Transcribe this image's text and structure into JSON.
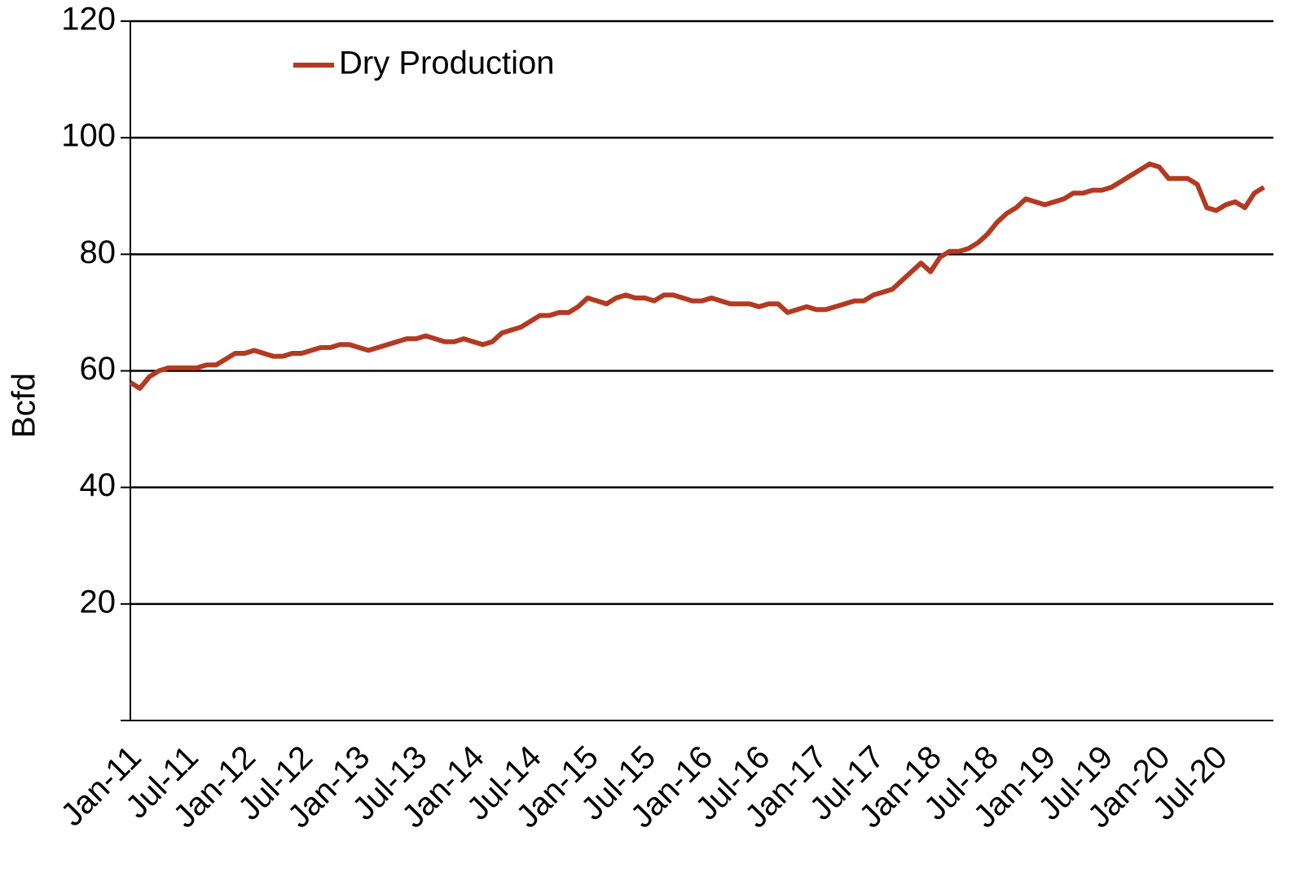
{
  "chart_data": {
    "type": "line",
    "y_label": "Bcfd",
    "categories": [
      "Jan-11",
      null,
      null,
      null,
      null,
      null,
      "Jul-11",
      null,
      null,
      null,
      null,
      null,
      "Jan-12",
      null,
      null,
      null,
      null,
      null,
      "Jul-12",
      null,
      null,
      null,
      null,
      null,
      "Jan-13",
      null,
      null,
      null,
      null,
      null,
      "Jul-13",
      null,
      null,
      null,
      null,
      null,
      "Jan-14",
      null,
      null,
      null,
      null,
      null,
      "Jul-14",
      null,
      null,
      null,
      null,
      null,
      "Jan-15",
      null,
      null,
      null,
      null,
      null,
      "Jul-15",
      null,
      null,
      null,
      null,
      null,
      "Jan-16",
      null,
      null,
      null,
      null,
      null,
      "Jul-16",
      null,
      null,
      null,
      null,
      null,
      "Jan-17",
      null,
      null,
      null,
      null,
      null,
      "Jul-17",
      null,
      null,
      null,
      null,
      null,
      "Jan-18",
      null,
      null,
      null,
      null,
      null,
      "Jul-18",
      null,
      null,
      null,
      null,
      null,
      "Jan-19",
      null,
      null,
      null,
      null,
      null,
      "Jul-19",
      null,
      null,
      null,
      null,
      null,
      "Jan-20",
      null,
      null,
      null,
      null,
      null,
      "Jul-20",
      null,
      null,
      null,
      null,
      null
    ],
    "series": [
      {
        "name": "Dry Production",
        "color": "#b33a22",
        "values": [
          58,
          57,
          59,
          60,
          60.5,
          60.5,
          60.5,
          60.5,
          61,
          61,
          62,
          63,
          63,
          63.5,
          63,
          62.5,
          62.5,
          63,
          63,
          63.5,
          64,
          64,
          64.5,
          64.5,
          64,
          63.5,
          64,
          64.5,
          65,
          65.5,
          65.5,
          66,
          65.5,
          65,
          65,
          65.5,
          65,
          64.5,
          65,
          66.5,
          67,
          67.5,
          68.5,
          69.5,
          69.5,
          70,
          70,
          71,
          72.5,
          72,
          71.5,
          72.5,
          73,
          72.5,
          72.5,
          72,
          73,
          73,
          72.5,
          72,
          72,
          72.5,
          72,
          71.5,
          71.5,
          71.5,
          71,
          71.5,
          71.5,
          70,
          70.5,
          71,
          70.5,
          70.5,
          71,
          71.5,
          72,
          72,
          73,
          73.5,
          74,
          75.5,
          77,
          78.5,
          77,
          79.5,
          80.5,
          80.5,
          81,
          82,
          83.5,
          85.5,
          87,
          88,
          89.5,
          89,
          88.5,
          89,
          89.5,
          90.5,
          90.5,
          91,
          91,
          91.5,
          92.5,
          93.5,
          94.5,
          95.5,
          95,
          93,
          93,
          93,
          92,
          88,
          87.5,
          88.5,
          89,
          88,
          90.5,
          91.5
        ]
      }
    ],
    "ylim": [
      0,
      120
    ],
    "yticks": [
      20,
      40,
      60,
      80,
      100,
      120
    ],
    "grid": true,
    "legend": "top-left"
  }
}
